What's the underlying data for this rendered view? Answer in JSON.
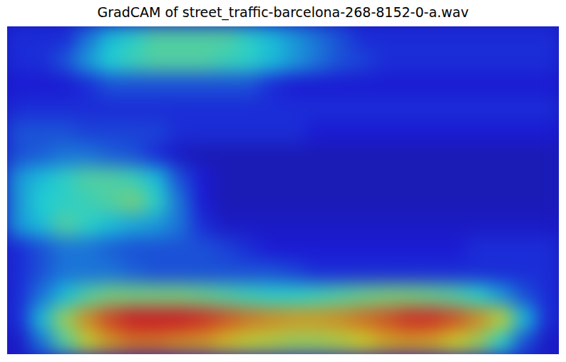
{
  "chart_data": {
    "type": "heatmap",
    "title": "GradCAM of street_traffic-barcelona-268-8152-0-a.wav",
    "tick_labels": false,
    "cells": [
      [
        0.15,
        0.15,
        0.15,
        0.25,
        0.35,
        0.4,
        0.45,
        0.45,
        0.45,
        0.45,
        0.4,
        0.35,
        0.3,
        0.25,
        0.2,
        0.15,
        0.15,
        0.15,
        0.15,
        0.15,
        0.15,
        0.15,
        0.15,
        0.15
      ],
      [
        0.15,
        0.15,
        0.2,
        0.3,
        0.38,
        0.42,
        0.45,
        0.45,
        0.45,
        0.42,
        0.4,
        0.35,
        0.3,
        0.25,
        0.2,
        0.18,
        0.15,
        0.15,
        0.15,
        0.15,
        0.15,
        0.15,
        0.15,
        0.15
      ],
      [
        0.12,
        0.12,
        0.12,
        0.15,
        0.2,
        0.2,
        0.2,
        0.2,
        0.2,
        0.2,
        0.2,
        0.15,
        0.12,
        0.12,
        0.12,
        0.12,
        0.12,
        0.12,
        0.12,
        0.12,
        0.12,
        0.12,
        0.12,
        0.12
      ],
      [
        0.15,
        0.15,
        0.15,
        0.15,
        0.15,
        0.15,
        0.15,
        0.15,
        0.15,
        0.15,
        0.15,
        0.15,
        0.15,
        0.15,
        0.15,
        0.15,
        0.15,
        0.15,
        0.15,
        0.15,
        0.15,
        0.15,
        0.15,
        0.15
      ],
      [
        0.2,
        0.2,
        0.2,
        0.18,
        0.18,
        0.18,
        0.18,
        0.15,
        0.15,
        0.15,
        0.15,
        0.15,
        0.15,
        0.12,
        0.12,
        0.12,
        0.12,
        0.12,
        0.12,
        0.12,
        0.12,
        0.12,
        0.12,
        0.12
      ],
      [
        0.2,
        0.22,
        0.25,
        0.25,
        0.22,
        0.2,
        0.15,
        0.1,
        0.08,
        0.08,
        0.08,
        0.08,
        0.08,
        0.08,
        0.08,
        0.08,
        0.08,
        0.08,
        0.08,
        0.08,
        0.08,
        0.08,
        0.08,
        0.08
      ],
      [
        0.3,
        0.35,
        0.4,
        0.45,
        0.45,
        0.42,
        0.35,
        0.2,
        0.12,
        0.08,
        0.08,
        0.08,
        0.08,
        0.08,
        0.08,
        0.08,
        0.08,
        0.08,
        0.08,
        0.08,
        0.08,
        0.08,
        0.08,
        0.08
      ],
      [
        0.3,
        0.38,
        0.4,
        0.42,
        0.45,
        0.5,
        0.4,
        0.25,
        0.12,
        0.08,
        0.08,
        0.08,
        0.08,
        0.08,
        0.08,
        0.08,
        0.08,
        0.08,
        0.08,
        0.08,
        0.08,
        0.08,
        0.08,
        0.08
      ],
      [
        0.3,
        0.35,
        0.45,
        0.4,
        0.35,
        0.32,
        0.3,
        0.25,
        0.15,
        0.1,
        0.1,
        0.1,
        0.1,
        0.1,
        0.1,
        0.1,
        0.1,
        0.1,
        0.1,
        0.1,
        0.1,
        0.1,
        0.1,
        0.1
      ],
      [
        0.15,
        0.2,
        0.25,
        0.25,
        0.22,
        0.2,
        0.2,
        0.2,
        0.2,
        0.18,
        0.15,
        0.12,
        0.12,
        0.12,
        0.12,
        0.12,
        0.12,
        0.12,
        0.12,
        0.12,
        0.15,
        0.15,
        0.15,
        0.15
      ],
      [
        0.15,
        0.2,
        0.25,
        0.25,
        0.25,
        0.22,
        0.2,
        0.2,
        0.2,
        0.2,
        0.2,
        0.2,
        0.18,
        0.15,
        0.15,
        0.15,
        0.15,
        0.15,
        0.15,
        0.15,
        0.15,
        0.15,
        0.15,
        0.15
      ],
      [
        0.15,
        0.25,
        0.35,
        0.45,
        0.5,
        0.5,
        0.5,
        0.5,
        0.48,
        0.45,
        0.42,
        0.4,
        0.4,
        0.42,
        0.45,
        0.48,
        0.5,
        0.5,
        0.48,
        0.45,
        0.4,
        0.3,
        0.2,
        0.15
      ],
      [
        0.15,
        0.35,
        0.55,
        0.72,
        0.82,
        0.88,
        0.88,
        0.88,
        0.85,
        0.8,
        0.75,
        0.72,
        0.7,
        0.7,
        0.72,
        0.76,
        0.8,
        0.85,
        0.85,
        0.8,
        0.72,
        0.6,
        0.35,
        0.15
      ],
      [
        0.1,
        0.25,
        0.45,
        0.6,
        0.7,
        0.75,
        0.75,
        0.72,
        0.7,
        0.65,
        0.6,
        0.58,
        0.55,
        0.55,
        0.58,
        0.62,
        0.68,
        0.7,
        0.68,
        0.62,
        0.55,
        0.4,
        0.2,
        0.1
      ]
    ]
  }
}
